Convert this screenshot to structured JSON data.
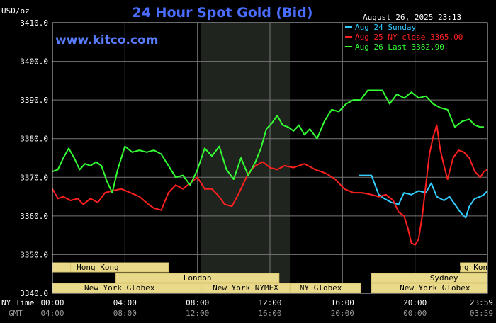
{
  "chart_data": {
    "type": "line",
    "title": "24 Hour Spot Gold (Bid)",
    "ylabel": "USD/oz",
    "brand": "www.kitco.com",
    "timestamp": "August 26, 2025 23:13",
    "ylim": [
      3340,
      3410
    ],
    "yticks": [
      "3410.0",
      "3400.0",
      "3390.0",
      "3380.0",
      "3370.0",
      "3360.0",
      "3350.0",
      "3340.0"
    ],
    "xlim": [
      0,
      24
    ],
    "tz_primary": "NY Time",
    "tz_secondary": "GMT",
    "xticks_ny": [
      "00:00",
      "04:00",
      "08:00",
      "12:00",
      "16:00",
      "20:00",
      "23:59"
    ],
    "xticks_gmt": [
      "04:00",
      "08:00",
      "12:00",
      "16:00",
      "20:00",
      "00:00",
      "03:59"
    ],
    "shaded_range": [
      8.2,
      13.1
    ],
    "series": [
      {
        "name": "Aug 24 Sunday",
        "color": "#33ccff",
        "x": [
          16.9,
          17.6,
          18.0,
          18.3,
          18.7,
          19.1,
          19.4,
          19.8,
          20.2,
          20.6,
          20.9,
          21.2,
          21.6,
          21.9,
          22.2,
          22.5,
          22.8,
          23.0,
          23.3,
          23.6,
          23.8,
          24.0
        ],
        "y": [
          3370.5,
          3370.5,
          3365.5,
          3364.5,
          3363.5,
          3363.0,
          3366.0,
          3365.5,
          3366.5,
          3366.0,
          3368.5,
          3365.0,
          3364.0,
          3365.0,
          3363.0,
          3361.0,
          3359.5,
          3362.5,
          3364.5,
          3365.0,
          3365.5,
          3366.5
        ]
      },
      {
        "name": "Aug 25 NY close 3365.00",
        "color": "#ff2020",
        "x": [
          0,
          0.3,
          0.6,
          1.0,
          1.4,
          1.7,
          2.1,
          2.5,
          2.9,
          3.3,
          3.8,
          4.3,
          4.8,
          5.3,
          5.6,
          6.0,
          6.4,
          6.8,
          7.2,
          7.6,
          8.0,
          8.4,
          8.8,
          9.2,
          9.5,
          9.9,
          10.3,
          10.8,
          11.2,
          11.6,
          12.0,
          12.4,
          12.8,
          13.3,
          13.9,
          14.5,
          15.1,
          15.6,
          16.1,
          16.6,
          17.1,
          17.6,
          18.0,
          18.4,
          18.8,
          19.1,
          19.4,
          19.6,
          19.8,
          20.0,
          20.2,
          20.4,
          20.6,
          20.8,
          21.0,
          21.2,
          21.4,
          21.6,
          21.8,
          22.1,
          22.4,
          22.7,
          23.0,
          23.3,
          23.6,
          23.8,
          24.0
        ],
        "y": [
          3367.0,
          3364.5,
          3365.0,
          3364.0,
          3364.5,
          3363.0,
          3364.5,
          3363.5,
          3366.0,
          3366.5,
          3367.0,
          3366.0,
          3365.0,
          3363.0,
          3362.0,
          3361.5,
          3366.0,
          3368.0,
          3367.0,
          3368.5,
          3370.0,
          3367.0,
          3367.0,
          3365.0,
          3363.0,
          3362.5,
          3366.0,
          3371.0,
          3373.0,
          3374.0,
          3372.5,
          3372.0,
          3373.0,
          3372.5,
          3373.5,
          3372.0,
          3371.0,
          3369.5,
          3367.0,
          3366.0,
          3366.0,
          3365.5,
          3365.0,
          3365.5,
          3364.0,
          3361.0,
          3360.0,
          3357.0,
          3353.0,
          3352.5,
          3354.0,
          3360.0,
          3368.0,
          3376.0,
          3380.5,
          3383.5,
          3377.0,
          3373.0,
          3369.5,
          3375.0,
          3377.0,
          3376.5,
          3375.0,
          3371.5,
          3370.0,
          3371.5,
          3372.0
        ]
      },
      {
        "name": "Aug 26 Last 3382.90",
        "color": "#33ff33",
        "x": [
          0,
          0.3,
          0.6,
          0.9,
          1.2,
          1.5,
          1.8,
          2.1,
          2.4,
          2.7,
          3.0,
          3.3,
          3.6,
          4.0,
          4.4,
          4.8,
          5.2,
          5.6,
          6.0,
          6.4,
          6.8,
          7.2,
          7.6,
          8.0,
          8.4,
          8.8,
          9.2,
          9.6,
          10.0,
          10.4,
          10.8,
          11.2,
          11.5,
          11.8,
          12.1,
          12.4,
          12.7,
          13.0,
          13.3,
          13.6,
          13.9,
          14.2,
          14.6,
          15.0,
          15.4,
          15.8,
          16.2,
          16.6,
          17.0,
          17.4,
          17.8,
          18.2,
          18.6,
          19.0,
          19.4,
          19.8,
          20.2,
          20.6,
          21.0,
          21.4,
          21.8,
          22.2,
          22.6,
          23.0,
          23.3,
          23.6,
          23.8
        ],
        "y": [
          3371.5,
          3372.0,
          3375.0,
          3377.5,
          3375.0,
          3372.0,
          3373.5,
          3373.0,
          3374.0,
          3373.0,
          3369.0,
          3366.0,
          3372.0,
          3378.0,
          3376.5,
          3377.0,
          3376.5,
          3377.0,
          3376.0,
          3373.0,
          3370.0,
          3370.5,
          3368.0,
          3372.0,
          3377.5,
          3375.5,
          3378.0,
          3372.0,
          3369.5,
          3375.0,
          3370.5,
          3374.0,
          3377.5,
          3382.5,
          3384.0,
          3386.0,
          3383.5,
          3383.0,
          3382.0,
          3383.5,
          3381.0,
          3382.5,
          3380.0,
          3384.5,
          3387.5,
          3387.0,
          3389.0,
          3390.0,
          3390.0,
          3392.5,
          3392.5,
          3392.5,
          3389.0,
          3391.5,
          3390.5,
          3392.0,
          3390.5,
          3391.0,
          3389.0,
          3388.0,
          3387.5,
          3383.0,
          3384.5,
          3385.0,
          3383.5,
          3383.0,
          3383.0
        ]
      }
    ],
    "sessions": [
      {
        "label": "Hong Kong",
        "rows": [
          [
            0,
            1.0
          ],
          [
            1.0,
            6.4
          ]
        ],
        "text_at": 2.5,
        "row": 0
      },
      {
        "label": "London",
        "rows": [
          [
            3.5,
            12.5
          ]
        ],
        "text_at": 8.0,
        "row": 1
      },
      {
        "label": "New York Globex",
        "rows": [
          [
            0,
            8.2
          ]
        ],
        "text_at": 3.7,
        "row": 2
      },
      {
        "label": "New York NYMEX",
        "rows": [
          [
            8.2,
            13.1
          ]
        ],
        "text_at": 10.65,
        "row": 2
      },
      {
        "label": "NY Globex",
        "rows": [
          [
            13.1,
            17.0
          ]
        ],
        "text_at": 14.8,
        "row": 2
      },
      {
        "label": "Hong Kong",
        "rows": [
          [
            22.5,
            24.0
          ]
        ],
        "text_at": 23.1,
        "row": 0
      },
      {
        "label": "Sydney",
        "rows": [
          [
            17.6,
            24.0
          ]
        ],
        "text_at": 21.6,
        "row": 1
      },
      {
        "label": "New York Globex",
        "rows": [
          [
            17.6,
            24.0
          ]
        ],
        "text_at": 21.1,
        "row": 2
      }
    ]
  }
}
